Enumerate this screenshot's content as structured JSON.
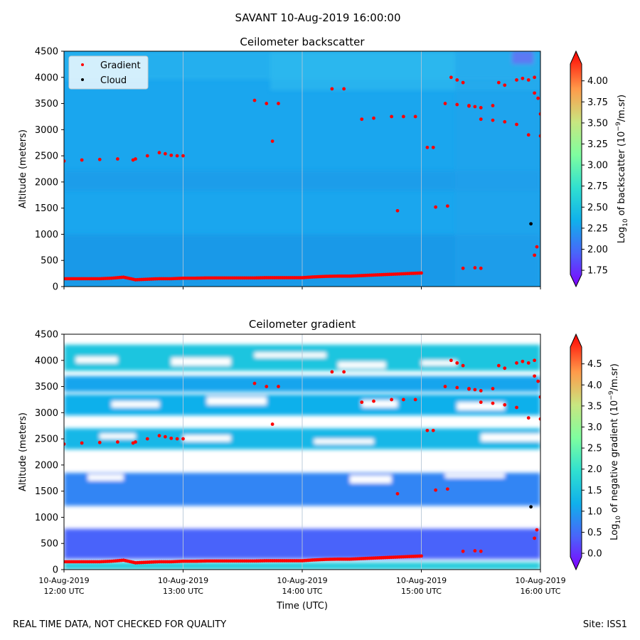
{
  "suptitle": "SAVANT 10-Aug-2019 16:00:00",
  "footer": {
    "left": "REAL TIME DATA, NOT CHECKED FOR QUALITY",
    "right": "Site: ISS1"
  },
  "colors": {
    "background_top": "#1aa6ee",
    "background_low": "#1d9ce9",
    "gradient_marker": "#ff0000",
    "cloud_marker": "#000000"
  },
  "chart_data": [
    {
      "type": "heatmap",
      "title": "Ceilometer backscatter",
      "ylabel": "Altitude (meters)",
      "ylim": [
        0,
        4500
      ],
      "yticks": [
        0,
        500,
        1000,
        1500,
        2000,
        2500,
        3000,
        3500,
        4000,
        4500
      ],
      "xlim": [
        0,
        4
      ],
      "colorbar": {
        "label": "Log10 of backscatter (10^-9/m.sr)",
        "label_main": "Log",
        "label_sub": "10",
        "label_rest": " of backscatter (10",
        "label_exp": "−9",
        "label_end": "/m.sr)",
        "ticks": [
          "4.00",
          "3.75",
          "3.50",
          "3.25",
          "3.00",
          "2.75",
          "2.50",
          "2.25",
          "2.00",
          "1.75"
        ],
        "range": [
          1.7,
          4.2
        ]
      },
      "legend": {
        "placement": "top-left",
        "entries": [
          "Gradient",
          "Cloud"
        ]
      },
      "gradient_points": {
        "x": [
          0,
          0.1,
          0.2,
          0.3,
          0.4,
          0.5,
          0.6,
          0.7,
          0.8,
          0.9,
          1.0,
          1.1,
          1.2,
          1.3,
          1.4,
          1.5,
          1.6,
          1.7,
          1.8,
          1.9,
          2.0,
          2.1,
          2.2,
          2.3,
          2.4,
          2.5,
          2.6,
          2.7,
          2.8,
          2.9,
          3.0,
          0,
          0.15,
          0.3,
          0.45,
          0.58,
          0.6,
          0.7,
          0.8,
          0.85,
          0.9,
          0.95,
          1.0,
          1.6,
          1.7,
          1.8,
          1.75,
          2.25,
          2.35,
          2.5,
          2.6,
          2.75,
          2.85,
          2.95,
          3.05,
          3.1,
          3.2,
          3.3,
          3.4,
          3.5,
          3.6,
          3.7,
          3.8,
          3.9,
          4.0,
          3.4,
          3.45,
          3.5,
          3.6,
          3.65,
          3.7,
          3.8,
          3.85,
          3.9,
          3.95,
          3.25,
          3.3,
          3.35,
          3.95,
          3.98,
          4.0,
          2.8,
          3.12,
          3.22,
          3.35,
          3.45,
          3.5,
          3.95,
          3.97
        ],
        "y": [
          150,
          150,
          150,
          150,
          160,
          180,
          130,
          140,
          150,
          150,
          160,
          160,
          165,
          165,
          165,
          165,
          165,
          170,
          170,
          170,
          170,
          185,
          195,
          200,
          200,
          210,
          220,
          230,
          240,
          250,
          260,
          2400,
          2420,
          2430,
          2440,
          2420,
          2440,
          2500,
          2560,
          2540,
          2510,
          2500,
          2500,
          3560,
          3500,
          3500,
          2780,
          3780,
          3780,
          3200,
          3220,
          3250,
          3250,
          3250,
          2660,
          2660,
          3500,
          3480,
          3450,
          3200,
          3180,
          3150,
          3100,
          2900,
          2880,
          3460,
          3440,
          3420,
          3460,
          3900,
          3850,
          3950,
          3980,
          3950,
          4000,
          4000,
          3950,
          3900,
          3700,
          3600,
          3300,
          1450,
          1520,
          1540,
          350,
          360,
          350,
          600,
          760
        ]
      },
      "cloud_points": {
        "x": [
          3.92
        ],
        "y": [
          1200
        ]
      }
    },
    {
      "type": "heatmap",
      "title": "Ceilometer gradient",
      "ylabel": "Altitude (meters)",
      "xlabel": "Time (UTC)",
      "ylim": [
        0,
        4500
      ],
      "yticks": [
        0,
        500,
        1000,
        1500,
        2000,
        2500,
        3000,
        3500,
        4000,
        4500
      ],
      "xlim": [
        0,
        4
      ],
      "xticks": [
        {
          "value": 0,
          "line1": "10-Aug-2019",
          "line2": "12:00 UTC"
        },
        {
          "value": 1,
          "line1": "10-Aug-2019",
          "line2": "13:00 UTC"
        },
        {
          "value": 2,
          "line1": "10-Aug-2019",
          "line2": "14:00 UTC"
        },
        {
          "value": 3,
          "line1": "10-Aug-2019",
          "line2": "15:00 UTC"
        },
        {
          "value": 4,
          "line1": "10-Aug-2019",
          "line2": "16:00 UTC"
        }
      ],
      "colorbar": {
        "label": "Log10 of negative gradient (10^-9/m.sr)",
        "label_main": "Log",
        "label_sub": "10",
        "label_rest": " of negative gradient (10",
        "label_exp": "−9",
        "label_end": "/m.sr)",
        "ticks": [
          "4.5",
          "4.0",
          "3.5",
          "3.0",
          "2.5",
          "2.0",
          "1.5",
          "1.0",
          "0.5",
          "0.0"
        ],
        "range": [
          -0.1,
          4.9
        ]
      },
      "bands": [
        {
          "y0": 0,
          "y1": 140,
          "value": 1.7
        },
        {
          "y0": 200,
          "y1": 780,
          "value": 0.6
        },
        {
          "y0": 1220,
          "y1": 1850,
          "value": 0.9
        },
        {
          "y0": 2300,
          "y1": 2700,
          "value": 1.4
        },
        {
          "y0": 2950,
          "y1": 3350,
          "value": 1.3
        },
        {
          "y0": 3400,
          "y1": 3700,
          "value": 1.2
        },
        {
          "y0": 3800,
          "y1": 4300,
          "value": 1.6
        }
      ]
    }
  ]
}
